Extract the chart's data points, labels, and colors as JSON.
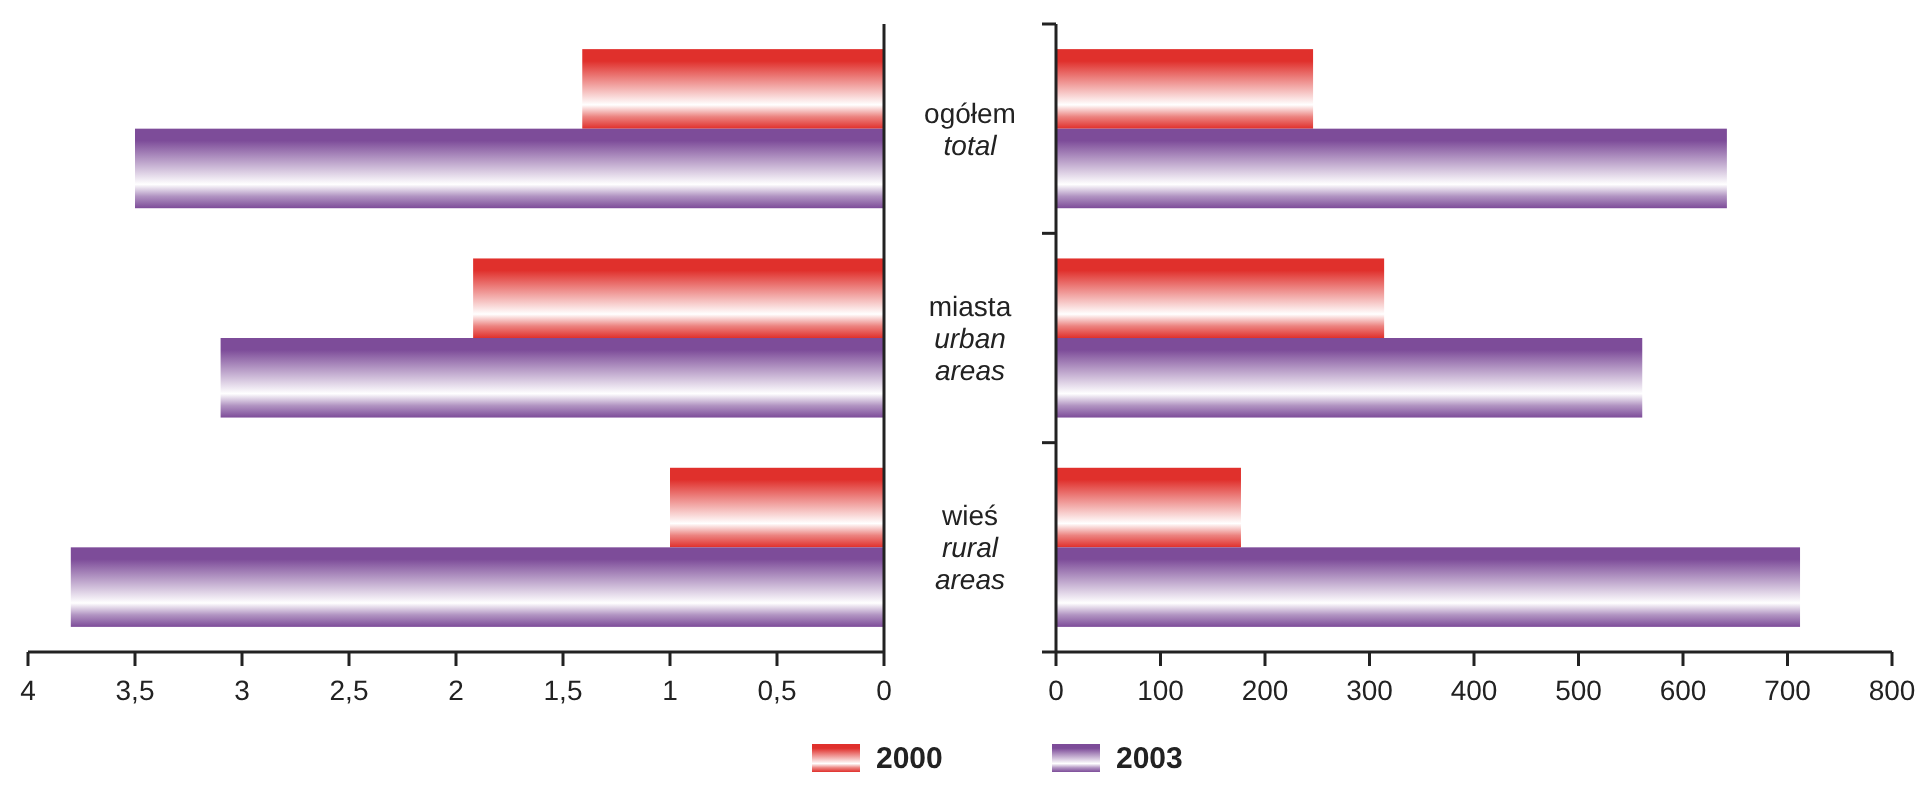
{
  "chart_data": [
    {
      "type": "bar",
      "orientation": "horizontal",
      "categories": [
        "ogółem\ntotal",
        "miasta\nurban\nareas",
        "wieś\nrural\nareas"
      ],
      "legend": "bottom",
      "series": [
        {
          "name": "2000",
          "color": "#e0302c",
          "values": [
            1.41,
            1.92,
            1.0
          ]
        },
        {
          "name": "2003",
          "color": "#7d4c99",
          "values": [
            3.5,
            3.1,
            3.8
          ]
        }
      ],
      "xlim": [
        4,
        0
      ],
      "xticks": [
        4,
        {
          "value": 3.5,
          "label": "3,5"
        },
        3,
        {
          "value": 2.5,
          "label": "2,5"
        },
        2,
        {
          "value": 1.5,
          "label": "1,5"
        },
        1,
        {
          "value": 0.5,
          "label": "0,5"
        },
        0
      ]
    },
    {
      "type": "bar",
      "orientation": "horizontal",
      "categories": [
        null,
        null,
        null
      ],
      "tick_labels": "x",
      "series": [
        {
          "color": "#e0302c",
          "values": [
            246,
            314,
            177
          ]
        },
        {
          "color": "#7d4c99",
          "values": [
            642,
            561,
            712
          ]
        }
      ],
      "xlim": [
        0,
        800
      ],
      "xticks": [
        0,
        100,
        200,
        300,
        400,
        500,
        600,
        700,
        800
      ]
    }
  ]
}
